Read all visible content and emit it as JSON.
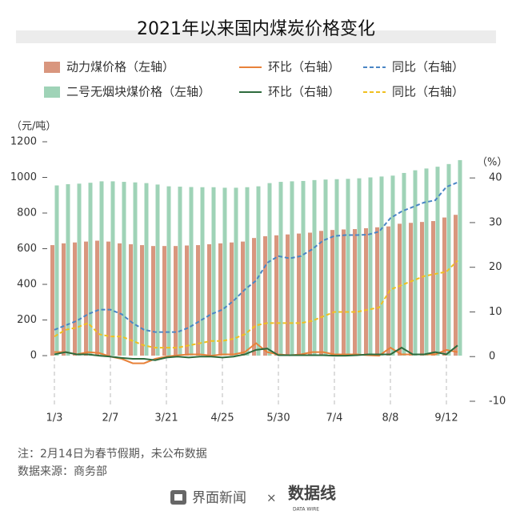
{
  "chart_data": {
    "type": "bar",
    "title": "2021年以来国内煤炭价格变化",
    "y_label": "（元/吨）",
    "y2_label": "（%）",
    "categories": [
      "1/3",
      null,
      null,
      null,
      null,
      "2/7",
      null,
      null,
      null,
      null,
      "3/21",
      null,
      null,
      null,
      null,
      "4/25",
      null,
      null,
      null,
      null,
      "5/30",
      null,
      null,
      null,
      null,
      "7/4",
      null,
      null,
      null,
      null,
      "8/8",
      null,
      null,
      null,
      null,
      "9/12",
      null
    ],
    "ylim": [
      -256,
      1200
    ],
    "yticks": [
      0,
      200,
      400,
      600,
      800,
      1000,
      1200
    ],
    "y2lim": [
      -10,
      48.1
    ],
    "y2ticks": [
      -10,
      0,
      10,
      20,
      30,
      40
    ],
    "series": [
      {
        "name": "动力煤价格（左轴）",
        "type": "bar",
        "color": "#d9967e",
        "values": [
          620,
          630,
          635,
          640,
          645,
          640,
          630,
          625,
          620,
          615,
          615,
          615,
          618,
          620,
          625,
          630,
          635,
          640,
          660,
          670,
          675,
          680,
          685,
          690,
          700,
          705,
          708,
          710,
          715,
          720,
          725,
          740,
          745,
          750,
          755,
          775,
          790
        ]
      },
      {
        "name": "环比（右轴）",
        "type": "line",
        "axis": "y2",
        "color": "#e8823a",
        "dashed": false,
        "values": [
          1,
          1,
          0.5,
          1,
          0.8,
          0,
          -0.5,
          -1.5,
          -1.5,
          -0.5,
          0,
          0.3,
          0.5,
          0.5,
          0.2,
          0.5,
          0.5,
          1,
          3,
          1,
          0.5,
          0.3,
          0.5,
          1,
          1,
          0.5,
          0.5,
          0.5,
          0.3,
          0.2,
          2,
          0.5,
          0.5,
          0.5,
          0.5,
          1.5,
          1
        ]
      },
      {
        "name": "同比（右轴）",
        "type": "line",
        "axis": "y2",
        "color": "#4a86c5",
        "dashed": true,
        "values": [
          6,
          7,
          8,
          9.5,
          10.5,
          10.5,
          9.5,
          7.5,
          6,
          5.5,
          5.5,
          5.5,
          6.5,
          8,
          9.5,
          10.5,
          12.5,
          15,
          17,
          21,
          22.5,
          22,
          22.5,
          24,
          26,
          27,
          27.2,
          27.2,
          27.3,
          28,
          31,
          32.5,
          33.5,
          34.5,
          35,
          38,
          39
        ]
      },
      {
        "name": "二号无烟块煤价格（左轴）",
        "type": "bar",
        "color": "#9fd3b7",
        "values": [
          955,
          962,
          965,
          970,
          978,
          978,
          975,
          972,
          968,
          960,
          950,
          948,
          946,
          945,
          945,
          942,
          942,
          945,
          950,
          968,
          975,
          978,
          980,
          985,
          988,
          990,
          992,
          995,
          1000,
          1005,
          1010,
          1025,
          1040,
          1050,
          1060,
          1075,
          1097
        ]
      },
      {
        "name": "环比（右轴）",
        "type": "line",
        "axis": "y2",
        "color": "#2e6b3d",
        "dashed": false,
        "values": [
          0.5,
          1,
          0.5,
          0.5,
          0.2,
          0,
          -0.3,
          -0.5,
          -0.5,
          -0.8,
          -0.2,
          0,
          -0.2,
          0,
          0,
          -0.2,
          0,
          0.5,
          1.5,
          1.8,
          0.3,
          0.3,
          0.3,
          0.3,
          0.3,
          0.2,
          0.2,
          0.3,
          0.5,
          0.5,
          0.5,
          2,
          0.5,
          0.5,
          1,
          0.5,
          2.5
        ]
      },
      {
        "name": "同比（右轴）",
        "type": "line",
        "axis": "y2",
        "color": "#f0c020",
        "dashed": true,
        "values": [
          4.5,
          6,
          6.5,
          7.5,
          5,
          4.5,
          4.5,
          3.5,
          2.5,
          2,
          2,
          2,
          2.5,
          3,
          3.5,
          3.5,
          4,
          5,
          7,
          7.5,
          7.5,
          7.5,
          7.5,
          8,
          9,
          10,
          10,
          10,
          10.5,
          11,
          15,
          16,
          17,
          18,
          18.5,
          19,
          21.5
        ]
      }
    ]
  },
  "notes": [
    "注：2月14日为春节假期，未公布数据",
    "数据来源：商务部"
  ],
  "footer": {
    "brand": "界面新闻",
    "separator": "×",
    "partner": "数据线",
    "partner_sub": "DATA WIRE"
  }
}
